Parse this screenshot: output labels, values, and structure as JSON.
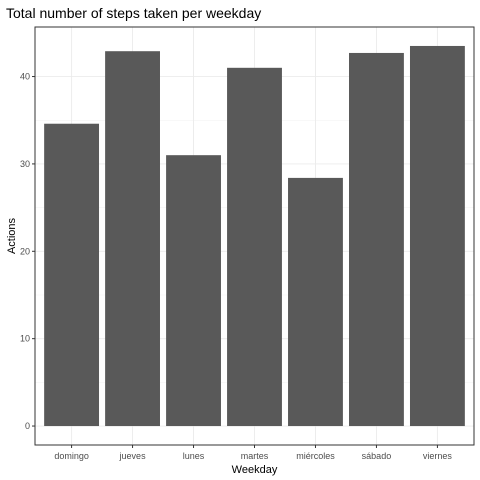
{
  "chart_data": {
    "type": "bar",
    "title": "Total number of steps taken per weekday",
    "xlabel": "Weekday",
    "ylabel": "Actions",
    "categories": [
      "domingo",
      "jueves",
      "lunes",
      "martes",
      "miércoles",
      "sábado",
      "viernes"
    ],
    "values": [
      34.6,
      42.9,
      31.0,
      41.0,
      28.4,
      42.7,
      43.5
    ],
    "yticks": [
      0,
      10,
      20,
      30,
      40
    ],
    "ylim": [
      -2.17,
      45.67
    ],
    "grid": true,
    "bar_color": "#595959",
    "legend": "none"
  }
}
